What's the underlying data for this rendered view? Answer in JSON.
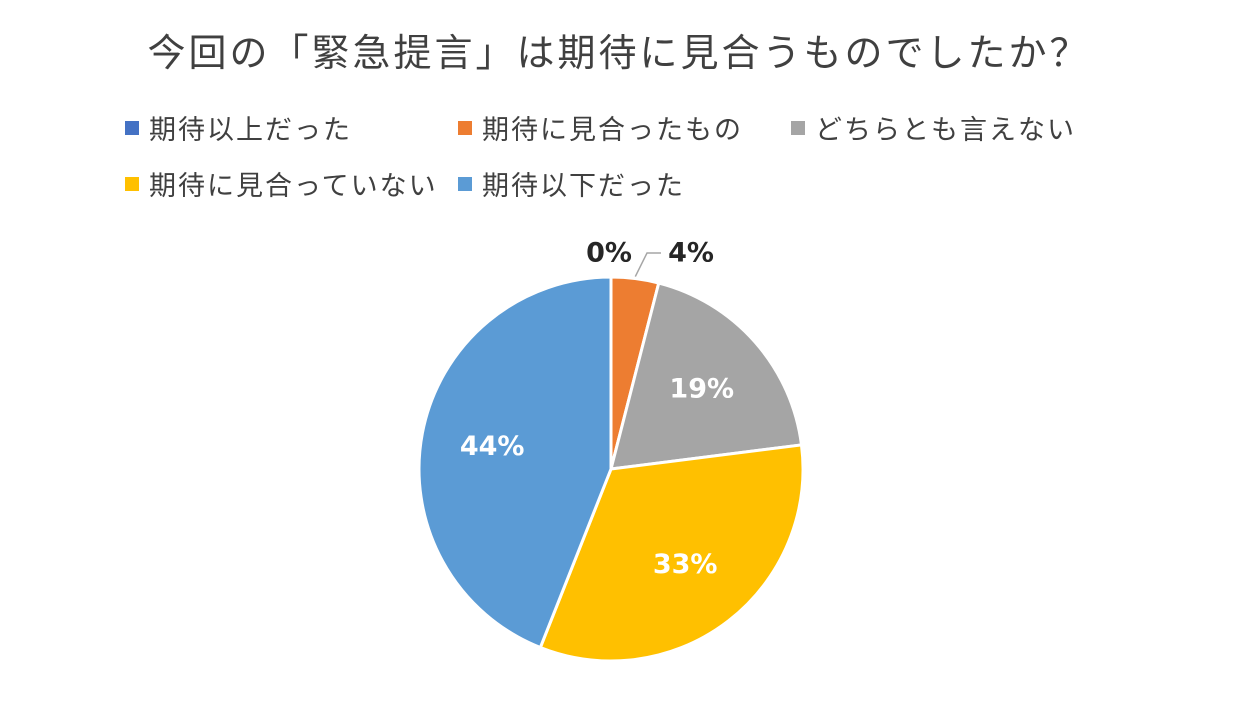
{
  "chart_data": {
    "type": "pie",
    "title": "今回の「緊急提言」は期待に見合うものでしたか？",
    "legend_position": "top",
    "series": [
      {
        "name": "期待以上だった",
        "value": 0,
        "label": "0%",
        "color": "#4472C4"
      },
      {
        "name": "期待に見合ったもの",
        "value": 4,
        "label": "4%",
        "color": "#ED7D31"
      },
      {
        "name": "どちらとも言えない",
        "value": 19,
        "label": "19%",
        "color": "#A5A5A5"
      },
      {
        "name": "期待に見合っていない",
        "value": 33,
        "label": "33%",
        "color": "#FFC000"
      },
      {
        "name": "期待以下だった",
        "value": 44,
        "label": "44%",
        "color": "#5B9BD5"
      }
    ]
  }
}
